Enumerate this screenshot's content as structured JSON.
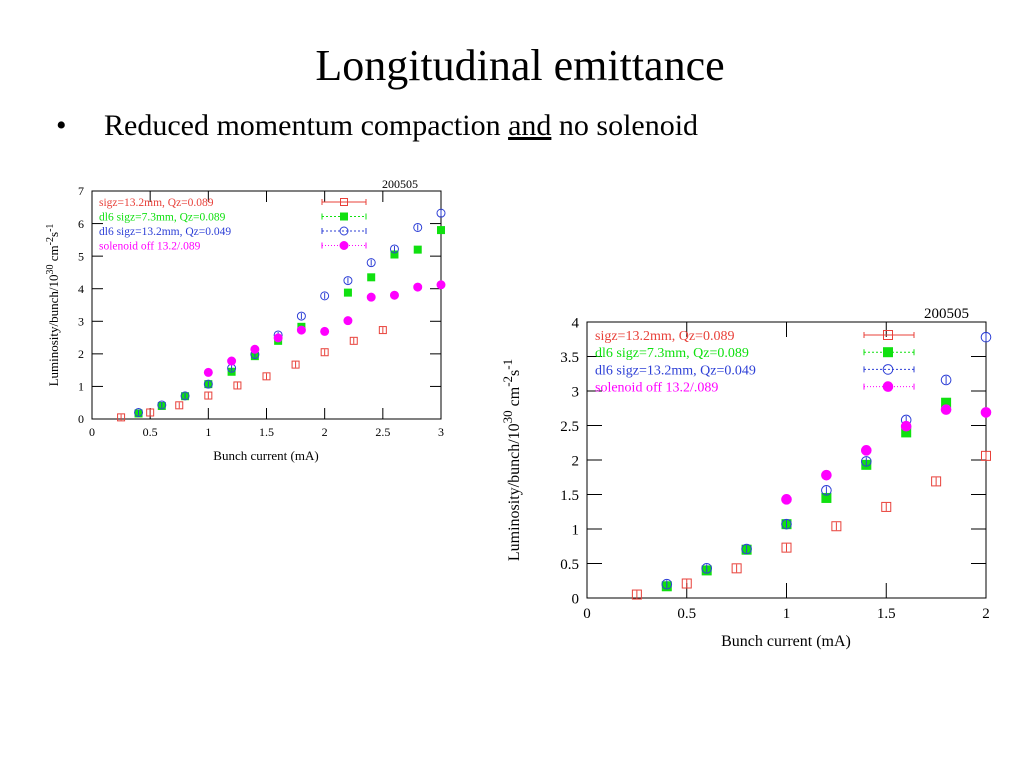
{
  "slide": {
    "title": "Longitudinal emittance",
    "bullet_marker": "•",
    "bullet_pre": "Reduced momentum compaction ",
    "bullet_underlined": "and",
    "bullet_post": " no solenoid"
  },
  "colors": {
    "red": "#e8413a",
    "green": "#10e010",
    "blue": "#2d3fd6",
    "magenta": "#ff00ff"
  },
  "chart_data": [
    {
      "type": "scatter",
      "title": "200505",
      "xlabel": "Bunch current (mA)",
      "ylabel": "Luminosity/bunch/10^30 cm^-2 s^-1",
      "xlim": [
        0,
        3
      ],
      "ylim": [
        0,
        7
      ],
      "xticks": [
        "0",
        "0.5",
        "1",
        "1.5",
        "2",
        "2.5",
        "3"
      ],
      "yticks": [
        "0",
        "1",
        "2",
        "3",
        "4",
        "5",
        "6",
        "7"
      ],
      "legend_position": "top-left",
      "series": [
        {
          "name": "sigz=13.2mm, Qz=0.089",
          "marker": "open-square",
          "color": "#e8413a",
          "x": [
            0.25,
            0.5,
            0.75,
            1.0,
            1.25,
            1.5,
            1.75,
            2.0,
            2.25,
            2.5
          ],
          "y": [
            0.05,
            0.2,
            0.42,
            0.72,
            1.03,
            1.31,
            1.67,
            2.05,
            2.4,
            2.73
          ]
        },
        {
          "name": "dl6 sigz=7.3mm, Qz=0.089",
          "marker": "filled-square",
          "color": "#10e010",
          "x": [
            0.4,
            0.6,
            0.8,
            1.0,
            1.2,
            1.4,
            1.6,
            1.8,
            2.2,
            2.4,
            2.6,
            2.8,
            3.0
          ],
          "y": [
            0.17,
            0.4,
            0.7,
            1.07,
            1.45,
            1.93,
            2.4,
            2.83,
            3.88,
            4.35,
            5.05,
            5.2,
            5.8
          ]
        },
        {
          "name": "dl6 sigz=13.2mm, Qz=0.049",
          "marker": "open-circle",
          "color": "#2d3fd6",
          "x": [
            0.4,
            0.6,
            0.8,
            1.0,
            1.2,
            1.4,
            1.6,
            1.8,
            2.0,
            2.2,
            2.4,
            2.6,
            2.8,
            3.0
          ],
          "y": [
            0.2,
            0.43,
            0.71,
            1.07,
            1.56,
            1.98,
            2.58,
            3.16,
            3.78,
            4.25,
            4.8,
            5.22,
            5.88,
            6.32
          ]
        },
        {
          "name": "solenoid off 13.2/.089",
          "marker": "filled-circle",
          "color": "#ff00ff",
          "x": [
            1.0,
            1.2,
            1.4,
            1.6,
            1.8,
            2.0,
            2.2,
            2.4,
            2.6,
            2.8,
            3.0
          ],
          "y": [
            1.43,
            1.78,
            2.14,
            2.49,
            2.73,
            2.69,
            3.02,
            3.74,
            3.8,
            4.05,
            4.12
          ]
        }
      ]
    },
    {
      "type": "scatter",
      "title": "200505",
      "xlabel": "Bunch current (mA)",
      "ylabel": "Luminosity/bunch/10^30 cm^-2 s^-1",
      "xlim": [
        0,
        2
      ],
      "ylim": [
        0,
        4
      ],
      "xticks": [
        "0",
        "0.5",
        "1",
        "1.5",
        "2"
      ],
      "yticks": [
        "0",
        "0.5",
        "1",
        "1.5",
        "2",
        "2.5",
        "3",
        "3.5",
        "4"
      ],
      "legend_position": "top-left",
      "series": [
        {
          "name": "sigz=13.2mm, Qz=0.089",
          "marker": "open-square",
          "color": "#e8413a",
          "x": [
            0.25,
            0.5,
            0.75,
            1.0,
            1.25,
            1.5,
            1.75,
            2.0
          ],
          "y": [
            0.05,
            0.21,
            0.43,
            0.73,
            1.04,
            1.32,
            1.69,
            2.06
          ]
        },
        {
          "name": "dl6 sigz=7.3mm, Qz=0.089",
          "marker": "filled-square",
          "color": "#10e010",
          "x": [
            0.4,
            0.6,
            0.8,
            1.0,
            1.2,
            1.4,
            1.6,
            1.8
          ],
          "y": [
            0.17,
            0.4,
            0.7,
            1.07,
            1.45,
            1.93,
            2.4,
            2.83
          ]
        },
        {
          "name": "dl6 sigz=13.2mm, Qz=0.049",
          "marker": "open-circle",
          "color": "#2d3fd6",
          "x": [
            0.4,
            0.6,
            0.8,
            1.0,
            1.2,
            1.4,
            1.6,
            1.8,
            2.0
          ],
          "y": [
            0.2,
            0.43,
            0.71,
            1.07,
            1.56,
            1.98,
            2.58,
            3.16,
            3.78
          ]
        },
        {
          "name": "solenoid off 13.2/.089",
          "marker": "filled-circle",
          "color": "#ff00ff",
          "x": [
            1.0,
            1.2,
            1.4,
            1.6,
            1.8,
            2.0
          ],
          "y": [
            1.43,
            1.78,
            2.14,
            2.49,
            2.73,
            2.69
          ]
        }
      ]
    }
  ]
}
